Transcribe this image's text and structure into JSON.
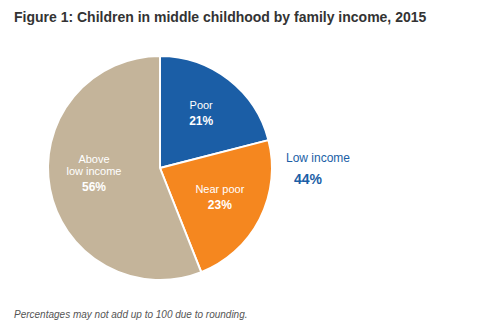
{
  "chart_data": {
    "type": "pie",
    "title": "Figure 1: Children in middle childhood by family income, 2015",
    "categories": [
      "Poor",
      "Near poor",
      "Above\nlow income"
    ],
    "values": [
      21,
      23,
      56
    ],
    "value_labels": [
      "21%",
      "23%",
      "56%"
    ],
    "data_labels": true,
    "colors": [
      "#1B5EA6",
      "#F5871F",
      "#C4B49A"
    ],
    "annotations": [
      {
        "text": "Low income",
        "color": "#1B5EA6"
      },
      {
        "value": 44,
        "label": "44%",
        "color": "#1B5EA6"
      },
      {
        "text": "Percentages may not add up to 100 due to rounding."
      }
    ]
  }
}
